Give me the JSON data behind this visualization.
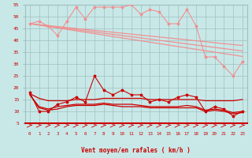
{
  "x": [
    0,
    1,
    2,
    3,
    4,
    5,
    6,
    7,
    8,
    9,
    10,
    11,
    12,
    13,
    14,
    15,
    16,
    17,
    18,
    19,
    20,
    21,
    22,
    23
  ],
  "series": {
    "light_pink_jagged": [
      47,
      48,
      46,
      42,
      48,
      54,
      49,
      54,
      54,
      54,
      54,
      55,
      51,
      53,
      52,
      47,
      47,
      53,
      46,
      33,
      33,
      29,
      25,
      31
    ],
    "light_pink_linear1": [
      47.0,
      46.6,
      46.2,
      45.8,
      45.4,
      45.0,
      44.6,
      44.2,
      43.8,
      43.4,
      43.0,
      42.6,
      42.2,
      41.8,
      41.4,
      41.0,
      40.6,
      40.2,
      39.8,
      39.4,
      39.0,
      38.6,
      38.2,
      37.8
    ],
    "light_pink_linear2": [
      47.0,
      46.5,
      46.0,
      45.5,
      45.0,
      44.5,
      44.0,
      43.5,
      43.0,
      42.5,
      42.0,
      41.5,
      41.0,
      40.5,
      40.0,
      39.5,
      39.0,
      38.5,
      38.0,
      37.5,
      37.0,
      36.5,
      36.0,
      35.5
    ],
    "light_pink_linear3": [
      47.0,
      46.4,
      45.8,
      45.2,
      44.6,
      44.0,
      43.4,
      42.8,
      42.2,
      41.6,
      41.0,
      40.4,
      39.8,
      39.2,
      38.6,
      38.0,
      37.4,
      36.8,
      36.2,
      35.6,
      35.0,
      34.4,
      33.8,
      33.2
    ],
    "dark_red_jagged": [
      18,
      10,
      10,
      13,
      14,
      16,
      14,
      25,
      19,
      17,
      19,
      17,
      17,
      14,
      15,
      14,
      16,
      17,
      16,
      10,
      12,
      11,
      8,
      10
    ],
    "dark_red_linear1": [
      17.5,
      15.5,
      14.5,
      14.5,
      14.5,
      15.0,
      15.0,
      15.0,
      15.5,
      15.5,
      15.5,
      15.5,
      15.5,
      15.0,
      15.0,
      15.0,
      15.0,
      15.0,
      15.0,
      14.5,
      14.5,
      14.5,
      14.5,
      15.0
    ],
    "dark_red_linear2": [
      17.0,
      12.0,
      11.0,
      12.0,
      12.5,
      13.0,
      13.0,
      13.0,
      13.5,
      13.0,
      13.0,
      13.0,
      12.5,
      12.0,
      12.0,
      12.0,
      12.0,
      12.5,
      12.0,
      10.5,
      11.0,
      10.5,
      9.5,
      10.0
    ],
    "dark_red_linear3": [
      17.0,
      11.5,
      10.5,
      11.0,
      12.0,
      12.5,
      12.5,
      12.5,
      13.0,
      12.5,
      12.0,
      12.0,
      12.0,
      11.5,
      11.5,
      11.5,
      11.5,
      11.5,
      11.5,
      10.0,
      10.5,
      10.0,
      9.0,
      9.5
    ]
  },
  "light_pink_color": "#F09090",
  "dark_red_color": "#CC0000",
  "bg_color": "#C8E8E8",
  "grid_color": "#A0C0C0",
  "axis_label_color": "#CC0000",
  "xlabel": "Vent moyen/en rafales ( km/h )",
  "ylim": [
    5,
    55
  ],
  "xlim": [
    -0.5,
    23.5
  ],
  "yticks": [
    5,
    10,
    15,
    20,
    25,
    30,
    35,
    40,
    45,
    50,
    55
  ],
  "xticks": [
    0,
    1,
    2,
    3,
    4,
    5,
    6,
    7,
    8,
    9,
    10,
    11,
    12,
    13,
    14,
    15,
    16,
    17,
    18,
    19,
    20,
    21,
    22,
    23
  ]
}
